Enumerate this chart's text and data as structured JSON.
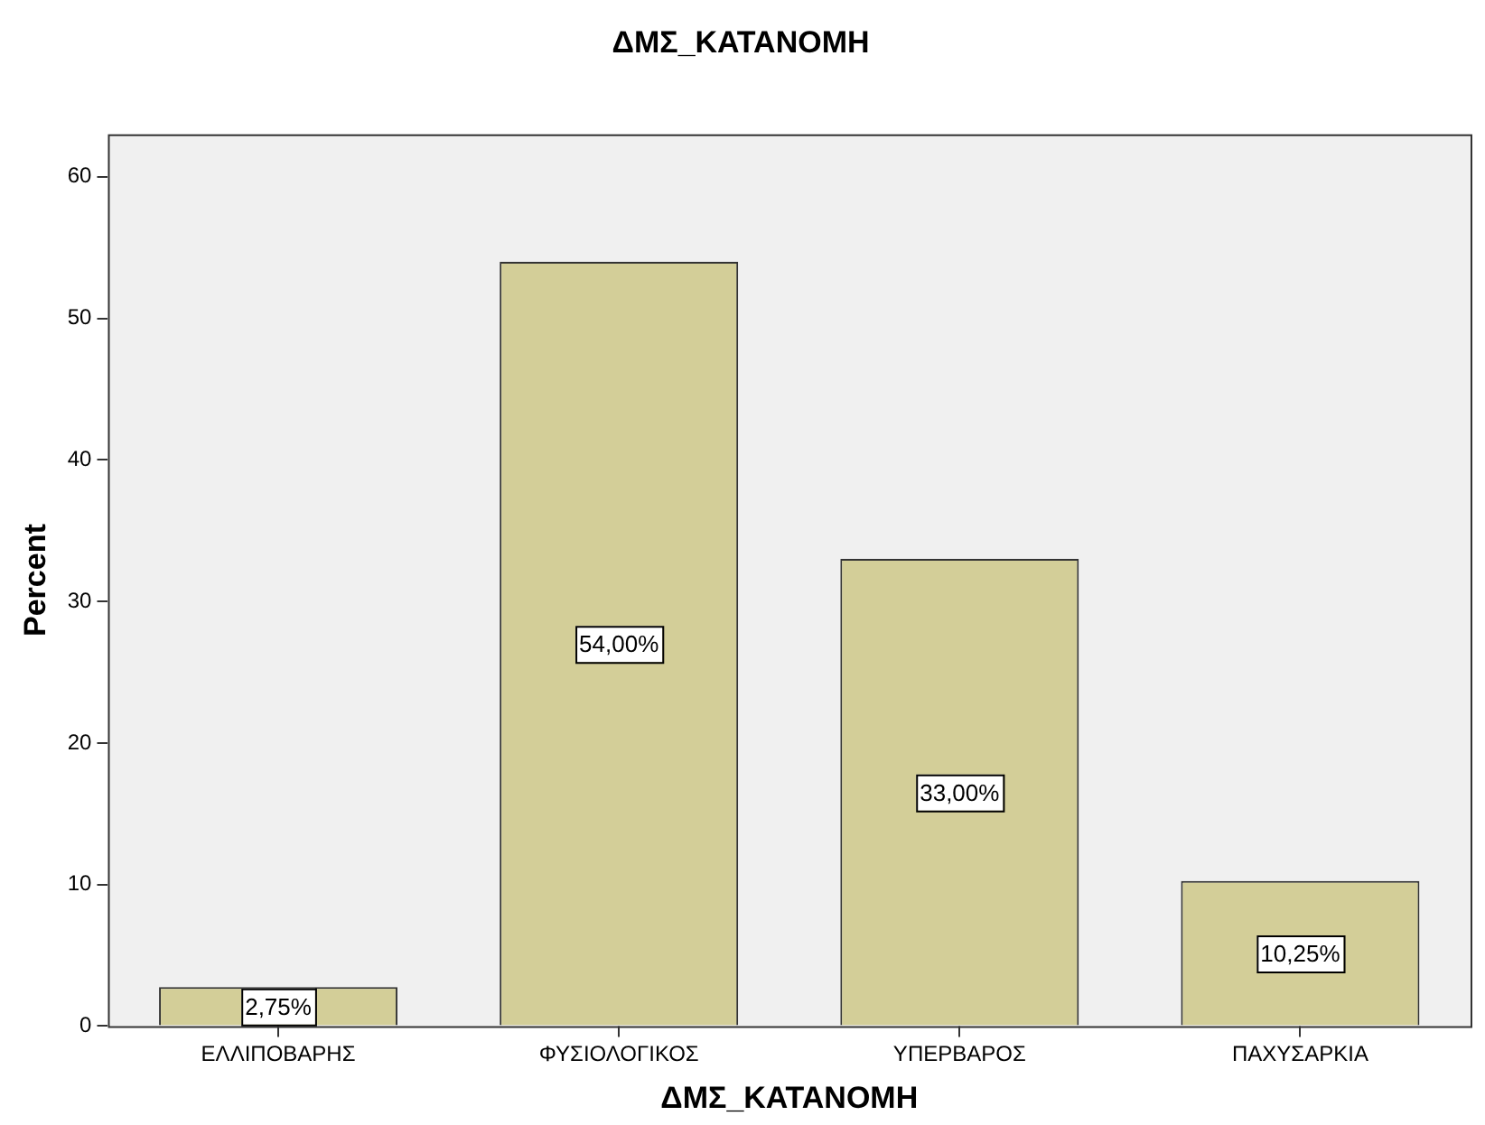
{
  "chart_data": {
    "type": "bar",
    "title": "ΔΜΣ_ΚΑΤΑΝΟΜΗ",
    "xlabel": "ΔΜΣ_ΚΑΤΑΝΟΜΗ",
    "ylabel": "Percent",
    "categories": [
      "ΕΛΛΙΠΟΒΑΡΗΣ",
      "ΦΥΣΙΟΛΟΓΙΚΟΣ",
      "ΥΠΕΡΒΑΡΟΣ",
      "ΠΑΧΥΣΑΡΚΙΑ"
    ],
    "values": [
      2.75,
      54,
      33,
      10.25
    ],
    "value_labels": [
      "2,75%",
      "54,00%",
      "33,00%",
      "10,25%"
    ],
    "color": "#d3ce98",
    "ylim": [
      0,
      63
    ],
    "yticks": [
      0,
      10,
      20,
      30,
      40,
      50,
      60
    ],
    "grid": false,
    "legend": false
  }
}
